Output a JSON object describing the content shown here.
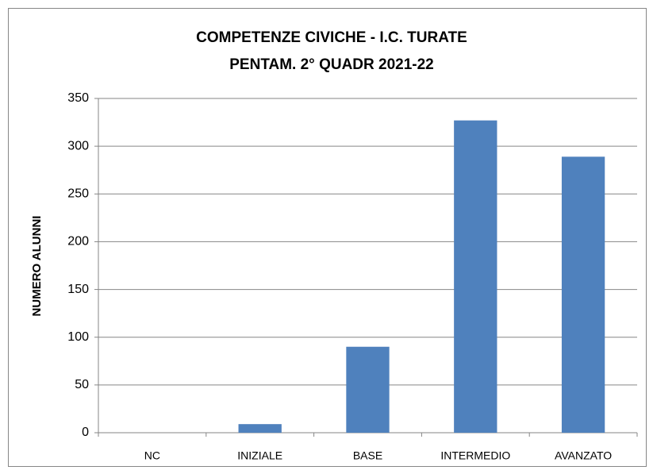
{
  "chart_data": {
    "type": "bar",
    "title": [
      "COMPETENZE CIVICHE  - I.C. TURATE",
      "PENTAM. 2° QUADR 2021-22"
    ],
    "y_label": "NUMERO ALUNNI",
    "categories": [
      "NC",
      "INIZIALE",
      "BASE",
      "INTERMEDIO",
      "AVANZATO"
    ],
    "values": [
      0,
      9,
      90,
      327,
      289
    ],
    "color": "#4f81bd",
    "ylim": [
      0,
      350
    ],
    "yticks": [
      0,
      50,
      100,
      150,
      200,
      250,
      300,
      350
    ],
    "grid": true
  }
}
